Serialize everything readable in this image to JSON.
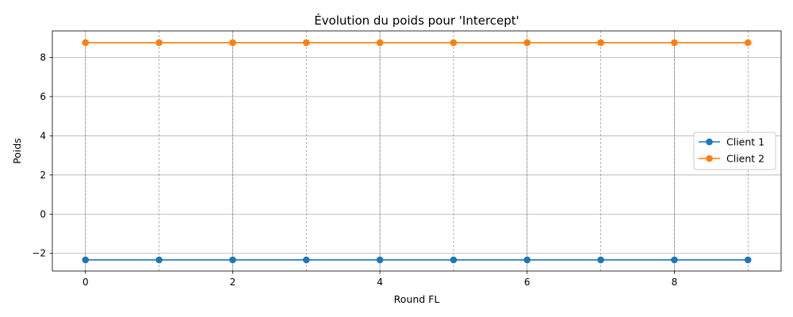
{
  "chart_data": {
    "type": "line",
    "title": "Évolution du poids pour 'Intercept'",
    "xlabel": "Round FL",
    "ylabel": "Poids",
    "x": [
      0,
      1,
      2,
      3,
      4,
      5,
      6,
      7,
      8,
      9
    ],
    "xlim": [
      -0.45,
      9.45
    ],
    "ylim": [
      -2.9,
      9.35
    ],
    "xticks": [
      0,
      2,
      4,
      6,
      8
    ],
    "xtick_labels": [
      "0",
      "2",
      "4",
      "6",
      "8"
    ],
    "yticks": [
      -2,
      0,
      2,
      4,
      6,
      8
    ],
    "ytick_labels": [
      "−2",
      "0",
      "2",
      "4",
      "6",
      "8"
    ],
    "vlines": [
      0,
      1,
      2,
      3,
      4,
      5,
      6,
      7,
      8,
      9
    ],
    "grid": true,
    "legend_position": "center-right",
    "series": [
      {
        "name": "Client 1",
        "color": "#1f77b4",
        "values": [
          -2.33,
          -2.33,
          -2.33,
          -2.33,
          -2.33,
          -2.33,
          -2.33,
          -2.33,
          -2.33,
          -2.33
        ]
      },
      {
        "name": "Client 2",
        "color": "#ff7f0e",
        "values": [
          8.75,
          8.75,
          8.75,
          8.75,
          8.75,
          8.75,
          8.75,
          8.75,
          8.75,
          8.75
        ]
      }
    ]
  }
}
